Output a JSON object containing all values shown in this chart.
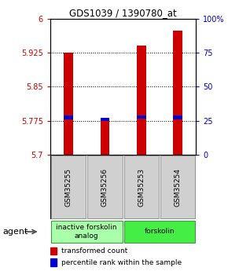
{
  "title": "GDS1039 / 1390780_at",
  "samples": [
    "GSM35255",
    "GSM35256",
    "GSM35253",
    "GSM35254"
  ],
  "bar_bottoms": [
    5.7,
    5.7,
    5.7,
    5.7
  ],
  "bar_tops": [
    5.925,
    5.778,
    5.942,
    5.975
  ],
  "percentile_values": [
    5.782,
    5.777,
    5.783,
    5.782
  ],
  "bar_color": "#cc0000",
  "percentile_color": "#0000cc",
  "ylim_left": [
    5.7,
    6.0
  ],
  "ylim_right": [
    0,
    100
  ],
  "yticks_left": [
    5.7,
    5.775,
    5.85,
    5.925,
    6.0
  ],
  "yticks_right": [
    0,
    25,
    50,
    75,
    100
  ],
  "ytick_labels_left": [
    "5.7",
    "5.775",
    "5.85",
    "5.925",
    "6"
  ],
  "ytick_labels_right": [
    "0",
    "25",
    "50",
    "75",
    "100%"
  ],
  "groups": [
    {
      "label": "inactive forskolin\nanalog",
      "samples": [
        0,
        1
      ],
      "color": "#aaffaa"
    },
    {
      "label": "forskolin",
      "samples": [
        2,
        3
      ],
      "color": "#44ee44"
    }
  ],
  "agent_label": "agent",
  "legend_red": "transformed count",
  "legend_blue": "percentile rank within the sample",
  "bar_width": 0.25,
  "background_color": "#ffffff"
}
